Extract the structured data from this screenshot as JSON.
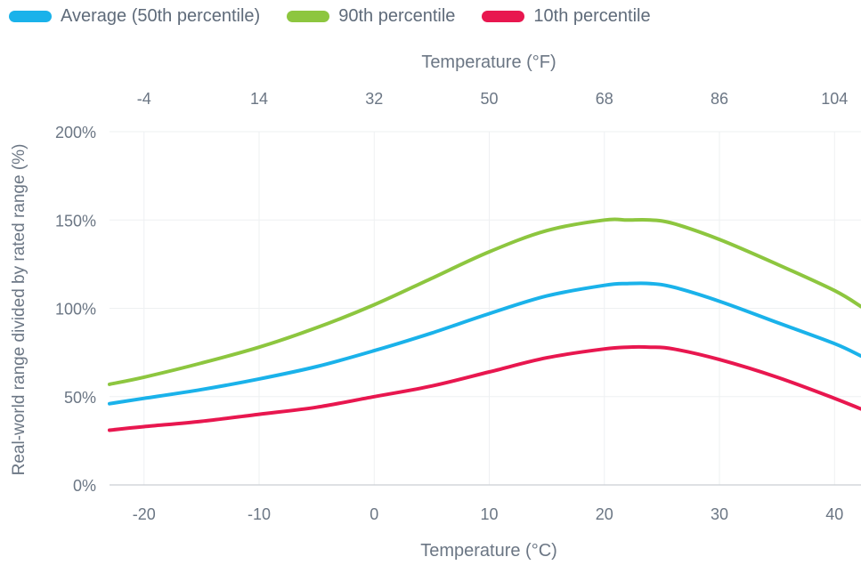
{
  "chart_data": {
    "type": "line",
    "xlabel": "Temperature (°C)",
    "x2label": "Temperature (°F)",
    "ylabel": "Real-world range divided by rated range (%)",
    "xlim": [
      -23,
      42.3
    ],
    "ylim": [
      0,
      200
    ],
    "x_ticks": [
      -20,
      -10,
      0,
      10,
      20,
      30,
      40
    ],
    "x2_ticks": [
      -4,
      14,
      32,
      50,
      68,
      86,
      104
    ],
    "y_ticks": [
      0,
      50,
      100,
      150,
      200
    ],
    "y_tick_labels": [
      "0%",
      "50%",
      "100%",
      "150%",
      "200%"
    ],
    "grid": true,
    "legend_position": "top-left",
    "series": [
      {
        "name": "Average (50th percentile)",
        "color": "#1ab2ea",
        "x": [
          -23,
          -20,
          -15,
          -10,
          -5,
          0,
          5,
          10,
          15,
          20,
          22,
          24,
          26,
          30,
          35,
          40,
          42.3
        ],
        "y": [
          46,
          49,
          54,
          60,
          67,
          76,
          86,
          97,
          107,
          113,
          114,
          114,
          112,
          104,
          92,
          80,
          73
        ]
      },
      {
        "name": "90th percentile",
        "color": "#8dc63f",
        "x": [
          -23,
          -20,
          -15,
          -10,
          -5,
          0,
          5,
          10,
          15,
          20,
          22,
          24,
          26,
          30,
          35,
          40,
          42.3
        ],
        "y": [
          57,
          61,
          69,
          78,
          89,
          102,
          117,
          132,
          144,
          150,
          150,
          150,
          148,
          139,
          125,
          110,
          101
        ]
      },
      {
        "name": "10th percentile",
        "color": "#e8174f",
        "x": [
          -23,
          -20,
          -15,
          -10,
          -5,
          0,
          5,
          10,
          15,
          20,
          22,
          24,
          26,
          30,
          35,
          40,
          42.3
        ],
        "y": [
          31,
          33,
          36,
          40,
          44,
          50,
          56,
          64,
          72,
          77,
          78,
          78,
          77,
          71,
          61,
          49,
          43
        ]
      }
    ]
  }
}
